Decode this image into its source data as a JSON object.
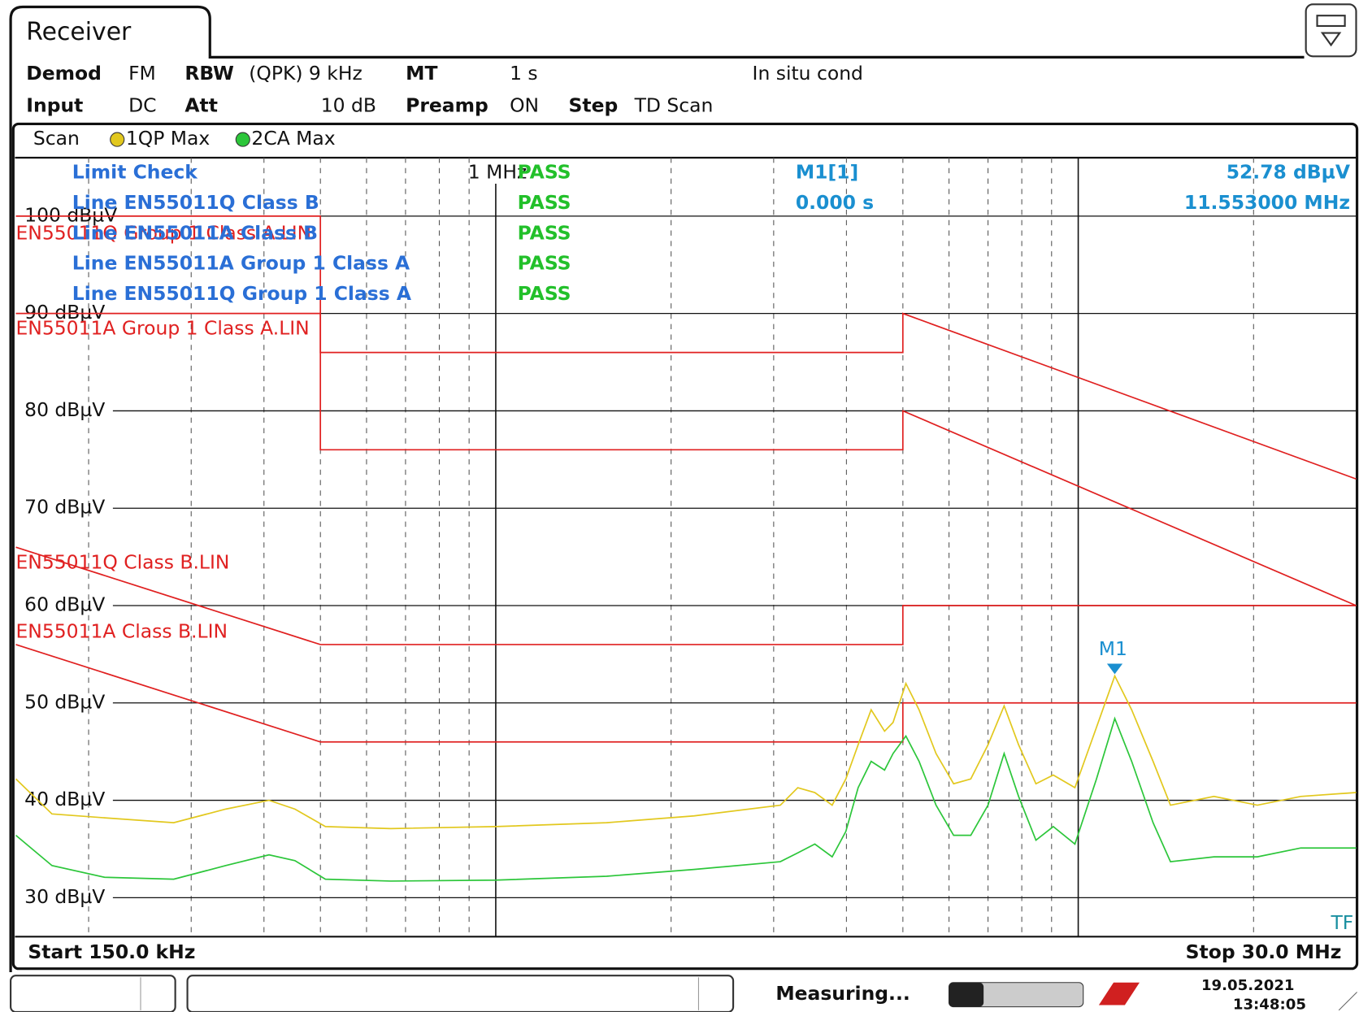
{
  "header": {
    "tab": "Receiver"
  },
  "settings": {
    "row1": [
      "Demod",
      "FM",
      "RBW",
      "(QPK) 9 kHz",
      "MT",
      "1 s",
      "In situ cond"
    ],
    "row2": [
      "Input",
      "DC",
      "Att",
      "10 dB",
      "Preamp",
      "ON",
      "Step",
      "TD Scan"
    ]
  },
  "chart_data": {
    "type": "line",
    "xscale": "log",
    "legend_title": "Scan",
    "xlim": [
      0.15,
      30
    ],
    "ylim": [
      26,
      106
    ],
    "xticks": [
      {
        "value": 1,
        "label": "1 MHz"
      }
    ],
    "xgrid": [
      0.2,
      0.3,
      0.4,
      0.5,
      0.6,
      0.7,
      0.8,
      0.9,
      2,
      3,
      4,
      5,
      6,
      7,
      8,
      9,
      10,
      20,
      30
    ],
    "yticks": [
      {
        "value": 30,
        "label": "30 dBµV"
      },
      {
        "value": 40,
        "label": "40 dBµV"
      },
      {
        "value": 50,
        "label": "50 dBµV"
      },
      {
        "value": 60,
        "label": "60 dBµV"
      },
      {
        "value": 70,
        "label": "70 dBµV"
      },
      {
        "value": 80,
        "label": "80 dBµV"
      },
      {
        "value": 90,
        "label": "90 dBµV"
      },
      {
        "value": 100,
        "label": "100 dBµV"
      }
    ],
    "grid": true,
    "series": [
      {
        "name": "1QP Max",
        "color": "#e2c81e",
        "x": [
          0.15,
          0.173,
          0.213,
          0.28,
          0.344,
          0.408,
          0.452,
          0.51,
          0.66,
          1.0,
          1.55,
          2.19,
          3.08,
          3.3,
          3.53,
          3.78,
          3.99,
          4.19,
          4.41,
          4.65,
          4.81,
          5.06,
          5.33,
          5.7,
          6.11,
          6.54,
          7.0,
          7.46,
          7.9,
          8.46,
          9.06,
          9.87,
          10.75,
          11.553,
          12.35,
          13.44,
          14.4,
          17.1,
          20.3,
          24.1,
          30
        ],
        "values": [
          42.2,
          38.6,
          38.2,
          37.7,
          39.1,
          40.0,
          39.1,
          37.3,
          37.1,
          37.3,
          37.7,
          38.4,
          39.5,
          41.3,
          40.8,
          39.5,
          42.2,
          45.7,
          49.3,
          47.1,
          48.0,
          52.0,
          49.3,
          44.8,
          41.7,
          42.2,
          45.7,
          49.7,
          45.7,
          41.7,
          42.6,
          41.3,
          47.5,
          52.78,
          49.3,
          44.0,
          39.5,
          40.4,
          39.5,
          40.4,
          40.8
        ]
      },
      {
        "name": "2CA Max",
        "color": "#2cc63a",
        "x": [
          0.15,
          0.173,
          0.213,
          0.28,
          0.344,
          0.408,
          0.452,
          0.51,
          0.66,
          1.0,
          1.55,
          2.19,
          3.08,
          3.3,
          3.53,
          3.78,
          3.99,
          4.19,
          4.41,
          4.65,
          4.81,
          5.06,
          5.33,
          5.7,
          6.11,
          6.54,
          7.0,
          7.46,
          7.9,
          8.46,
          9.06,
          9.87,
          10.75,
          11.553,
          12.35,
          13.44,
          14.4,
          17.1,
          20.3,
          24.1,
          30
        ],
        "values": [
          36.4,
          33.3,
          32.1,
          31.9,
          33.3,
          34.4,
          33.8,
          31.9,
          31.7,
          31.8,
          32.2,
          32.9,
          33.7,
          34.6,
          35.5,
          34.2,
          36.8,
          41.3,
          44.0,
          43.1,
          44.8,
          46.6,
          44.0,
          39.5,
          36.4,
          36.4,
          39.5,
          44.8,
          40.4,
          35.9,
          37.3,
          35.5,
          42.2,
          48.4,
          44.0,
          37.7,
          33.7,
          34.2,
          34.2,
          35.1,
          35.1
        ]
      }
    ],
    "limit_lines": [
      {
        "name": "EN55011Q Group 1 Class A.LIN",
        "color": "#e02020",
        "x": [
          0.15,
          0.5,
          0.5,
          5,
          5,
          30
        ],
        "values": [
          100,
          100,
          86,
          86,
          90,
          73
        ]
      },
      {
        "name": "EN55011A Group 1 Class A.LIN",
        "color": "#e02020",
        "x": [
          0.15,
          0.5,
          0.5,
          5,
          5,
          30
        ],
        "values": [
          90,
          90,
          76,
          76,
          80,
          60
        ]
      },
      {
        "name": "EN55011Q Class B.LIN",
        "color": "#e02020",
        "x": [
          0.15,
          0.5,
          5,
          5,
          30
        ],
        "values": [
          66,
          56,
          56,
          60,
          60
        ]
      },
      {
        "name": "EN55011A Class B.LIN",
        "color": "#e02020",
        "x": [
          0.15,
          0.5,
          5,
          5,
          30
        ],
        "values": [
          56,
          46,
          46,
          50,
          50
        ]
      }
    ],
    "marker": {
      "label": "M1",
      "x": 11.553,
      "y": 52.78,
      "color": "#1a8fd0"
    },
    "marker_info": {
      "name": "M1[1]",
      "value": "52.78 dBµV",
      "time": "0.000 s",
      "freq": "11.553000 MHz"
    },
    "limit_check": {
      "title": "Limit Check",
      "status": "PASS",
      "lines": [
        {
          "name": "Line EN55011Q Class B",
          "status": "PASS"
        },
        {
          "name": "Line EN55011A Class B",
          "status": "PASS"
        },
        {
          "name": "Line EN55011A Group 1 Class A",
          "status": "PASS"
        },
        {
          "name": "Line EN55011Q Group 1 Class A",
          "status": "PASS"
        }
      ]
    },
    "start_label": "Start 150.0 kHz",
    "stop_label": "Stop 30.0 MHz",
    "corner_label": "TF"
  },
  "status_bar": {
    "state": "Measuring...",
    "date": "19.05.2021",
    "time": "13:48:05"
  }
}
